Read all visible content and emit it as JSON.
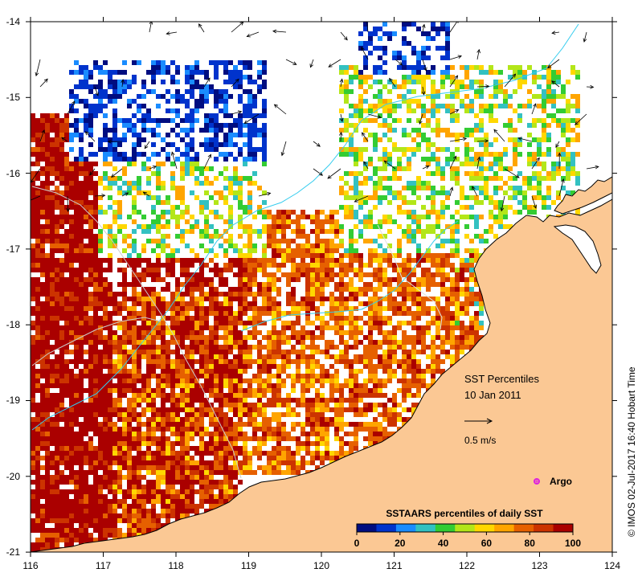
{
  "map": {
    "lon_range": [
      116,
      124
    ],
    "lat_range": [
      -21,
      -14
    ],
    "lon_ticks": [
      "116",
      "117",
      "118",
      "119",
      "120",
      "121",
      "122",
      "123",
      "124"
    ],
    "lat_ticks": [
      "-14",
      "-15",
      "-16",
      "-17",
      "-18",
      "-19",
      "-20",
      "-21"
    ],
    "land_color": "#fbc894",
    "ocean_nodata_color": "#ffffff",
    "coastline_color": "#000000",
    "isobath_color": "#33ccee"
  },
  "title": {
    "line1": "SST Percentiles",
    "line2": "10 Jan 2011"
  },
  "current_scale": {
    "label": "0.5 m/s"
  },
  "legend": {
    "argo_label": "Argo",
    "argo_color": "#dd22dd"
  },
  "colorbar": {
    "title": "SSTAARS percentiles of daily SST",
    "tick_labels": [
      "0",
      "20",
      "40",
      "60",
      "80",
      "100"
    ],
    "colors": [
      "#000d80",
      "#0033cc",
      "#1a8cff",
      "#33c1c1",
      "#33cc33",
      "#b3e619",
      "#ffd700",
      "#ffa500",
      "#e66000",
      "#cc3300",
      "#aa0000"
    ]
  },
  "credit": {
    "text": "© IMOS 02-Jul-2017 16:40 Hobart Time"
  }
}
